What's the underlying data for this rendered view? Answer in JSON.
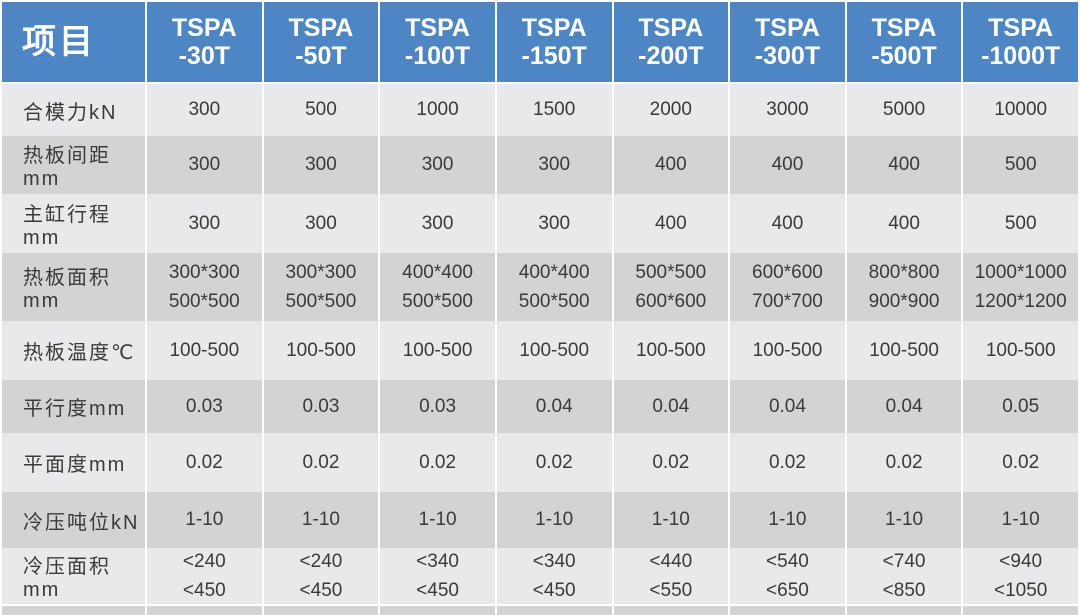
{
  "table": {
    "item_header": "项目",
    "column_headers": [
      "TSPA\n-30T",
      "TSPA\n-50T",
      "TSPA\n-100T",
      "TSPA\n-150T",
      "TSPA\n-200T",
      "TSPA\n-300T",
      "TSPA\n-500T",
      "TSPA\n-1000T"
    ],
    "rows": [
      {
        "label": "合模力kN",
        "values": [
          "300",
          "500",
          "1000",
          "1500",
          "2000",
          "3000",
          "5000",
          "10000"
        ]
      },
      {
        "label": "热板间距mm",
        "values": [
          "300",
          "300",
          "300",
          "300",
          "400",
          "400",
          "400",
          "500"
        ]
      },
      {
        "label": "主缸行程mm",
        "values": [
          "300",
          "300",
          "300",
          "300",
          "400",
          "400",
          "400",
          "500"
        ]
      },
      {
        "label": "热板面积mm",
        "values": [
          "300*300\n500*500",
          "300*300\n500*500",
          "400*400\n500*500",
          "400*400\n500*500",
          "500*500\n600*600",
          "600*600\n700*700",
          "800*800\n900*900",
          "1000*1000\n1200*1200"
        ]
      },
      {
        "label": "热板温度℃",
        "values": [
          "100-500",
          "100-500",
          "100-500",
          "100-500",
          "100-500",
          "100-500",
          "100-500",
          "100-500"
        ]
      },
      {
        "label": "平行度mm",
        "values": [
          "0.03",
          "0.03",
          "0.03",
          "0.04",
          "0.04",
          "0.04",
          "0.04",
          "0.05"
        ]
      },
      {
        "label": "平面度mm",
        "values": [
          "0.02",
          "0.02",
          "0.02",
          "0.02",
          "0.02",
          "0.02",
          "0.02",
          "0.02"
        ]
      },
      {
        "label": "冷压吨位kN",
        "values": [
          "1-10",
          "1-10",
          "1-10",
          "1-10",
          "1-10",
          "1-10",
          "1-10",
          "1-10"
        ]
      },
      {
        "label": "冷压面积mm",
        "values": [
          "<240\n<450",
          "<240\n<450",
          "<340\n<450",
          "<340\n<450",
          "<440\n<550",
          "<540\n<650",
          "<740\n<850",
          "<940\n<1050"
        ]
      }
    ],
    "colors": {
      "header_bg": "#4e86c4",
      "header_text": "#ffffff",
      "row_light": "#e9e9eb",
      "row_dark": "#d3d3d6",
      "text": "#3a3a3a"
    }
  }
}
